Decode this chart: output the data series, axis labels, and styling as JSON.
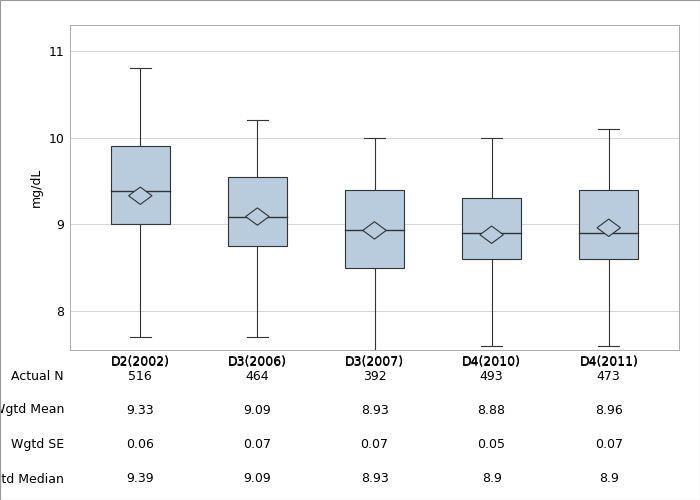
{
  "categories": [
    "D2(2002)",
    "D3(2006)",
    "D3(2007)",
    "D4(2010)",
    "D4(2011)"
  ],
  "actual_n": [
    516,
    464,
    392,
    493,
    473
  ],
  "wgtd_mean": [
    9.33,
    9.09,
    8.93,
    8.88,
    8.96
  ],
  "wgtd_se": [
    0.06,
    0.07,
    0.07,
    0.05,
    0.07
  ],
  "wgtd_median": [
    9.39,
    9.09,
    8.93,
    8.9,
    8.9
  ],
  "box_q1": [
    9.0,
    8.75,
    8.5,
    8.6,
    8.6
  ],
  "box_q3": [
    9.9,
    9.55,
    9.4,
    9.3,
    9.4
  ],
  "box_median": [
    9.39,
    9.09,
    8.93,
    8.9,
    8.9
  ],
  "box_mean": [
    9.33,
    9.09,
    8.93,
    8.88,
    8.96
  ],
  "whisker_low": [
    7.7,
    7.7,
    7.5,
    7.6,
    7.6
  ],
  "whisker_high": [
    10.8,
    10.2,
    10.0,
    10.0,
    10.1
  ],
  "box_color": "#b8ccde",
  "box_edge_color": "#333333",
  "whisker_color": "#333333",
  "median_color": "#333333",
  "mean_marker_facecolor": "#b8ccde",
  "mean_marker_edge_color": "#333333",
  "ylabel": "mg/dL",
  "ylim": [
    7.55,
    11.3
  ],
  "yticks": [
    8.0,
    9.0,
    10.0,
    11.0
  ],
  "grid_color": "#d0d0d0",
  "plot_bg_color": "#ffffff",
  "fig_bg_color": "#ffffff",
  "border_color": "#aaaaaa",
  "table_labels": [
    "Actual N",
    "Wgtd Mean",
    "Wgtd SE",
    "Wgtd Median"
  ],
  "font_size": 9,
  "table_font_size": 9
}
